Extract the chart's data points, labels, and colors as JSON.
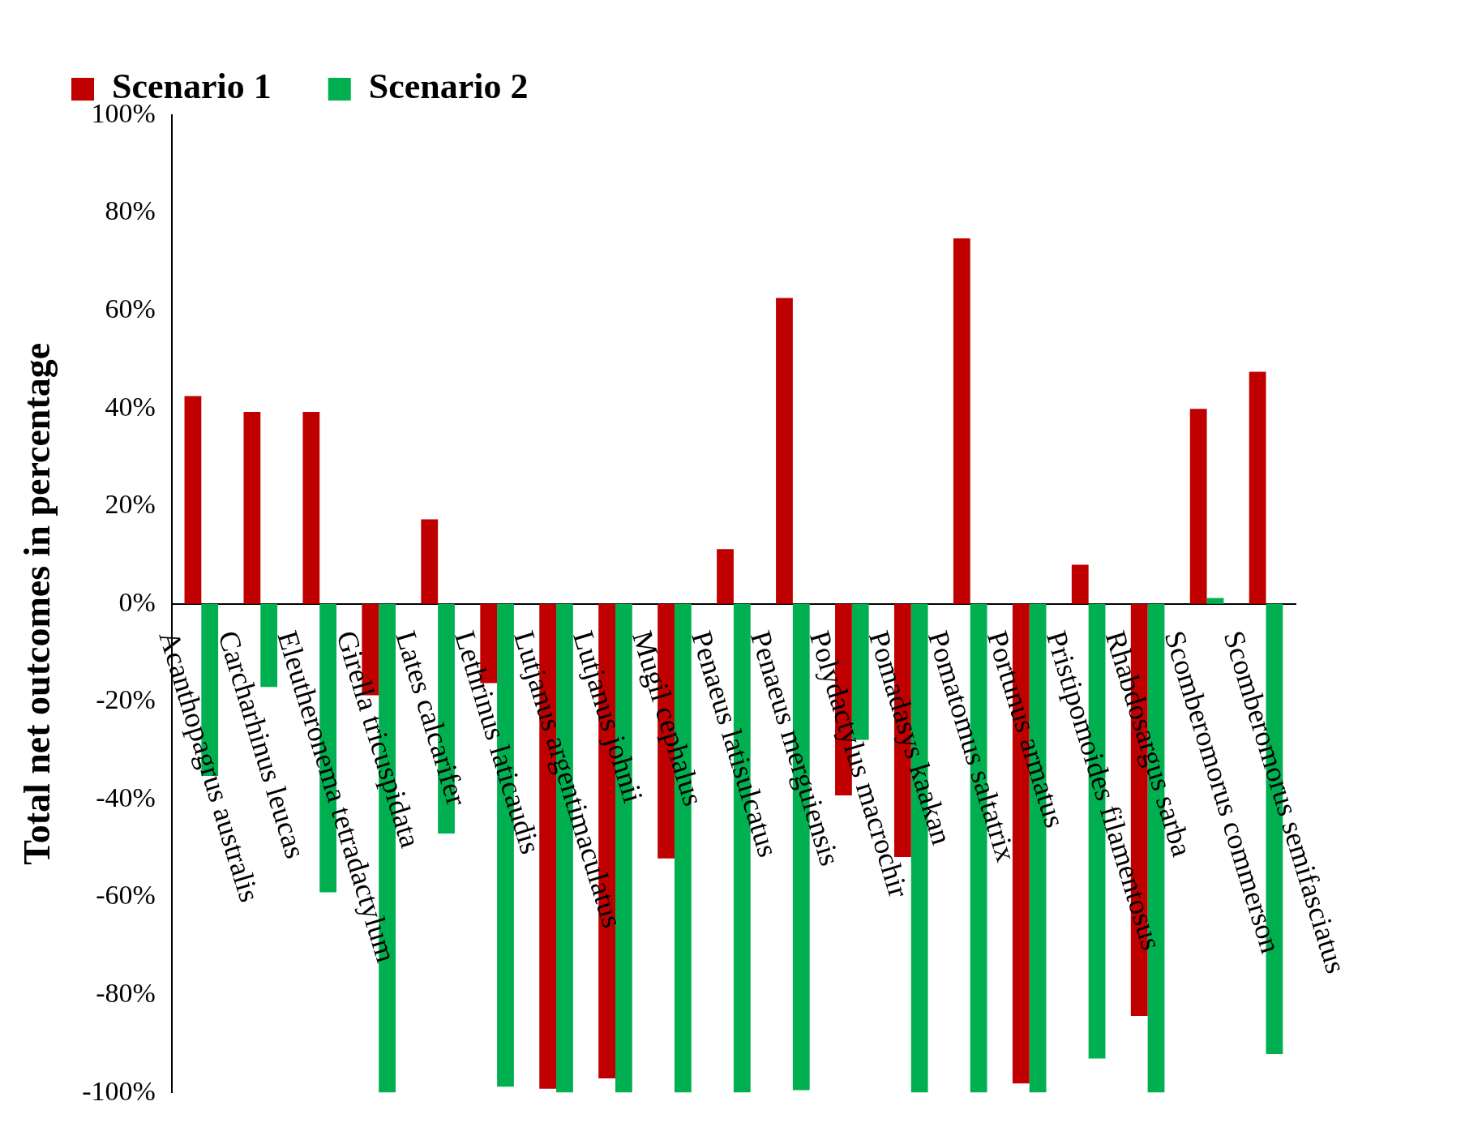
{
  "chart_data": {
    "type": "bar",
    "ylabel": "Total net outcomes in percentage",
    "categories": [
      "Acanthopagrus australis",
      "Carcharhinus leucas",
      "Eleutheronema tetradactylum",
      "Girella tricuspidata",
      "Lates calcarifer",
      "Lethrinus laticaudis",
      "Lutjanus argentimaculatus",
      "Lutjanus johnii",
      "Mugil cephalus",
      "Penaeus latisulcatus",
      "Penaeus merguiensis",
      "Polydactylus macrochir",
      "Pomadasys kaakan",
      "Pomatomus saltatrix",
      "Portunus armatus",
      "Pristipomoides filamentosus",
      "Rhabdosargus sarba",
      "Scomberomorus commerson",
      "Scomberomorus semifasciatus"
    ],
    "series": [
      {
        "name": "Scenario 1",
        "color": "#c00000",
        "values": [
          42.5,
          39.3,
          39.3,
          -18.7,
          17.3,
          -16.2,
          -99.2,
          -97.1,
          -52.1,
          11.2,
          62.6,
          -39.2,
          -51.8,
          74.8,
          -98.1,
          8.0,
          -84.3,
          39.9,
          47.5
        ]
      },
      {
        "name": "Scenario 2",
        "color": "#00b050",
        "values": [
          -35.2,
          -17,
          -59,
          -100,
          -47,
          -98.8,
          -100,
          -100,
          -100,
          -100,
          -99.5,
          -27.8,
          -100,
          -100,
          -100,
          -93,
          -100,
          1.2,
          -92.1
        ]
      }
    ],
    "ylim": [
      -100,
      100
    ],
    "yticks": [
      {
        "value": -100,
        "label": "-100%"
      },
      {
        "value": -80,
        "label": "-80%"
      },
      {
        "value": -60,
        "label": "-60%"
      },
      {
        "value": -40,
        "label": "-40%"
      },
      {
        "value": -20,
        "label": "-20%"
      },
      {
        "value": 0,
        "label": "0%"
      },
      {
        "value": 20,
        "label": "20%"
      },
      {
        "value": 40,
        "label": "40%"
      },
      {
        "value": 60,
        "label": "60%"
      },
      {
        "value": 80,
        "label": "80%"
      },
      {
        "value": 100,
        "label": "100%"
      }
    ],
    "grid": false,
    "legend": "top left"
  }
}
